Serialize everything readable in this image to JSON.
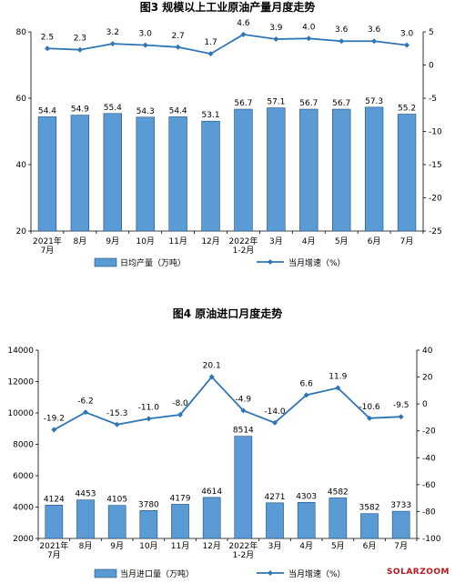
{
  "watermark": "SOLARZOOM",
  "colors": {
    "bar_fill": "#5b9bd5",
    "bar_stroke": "#1f4e79",
    "line": "#2e75b6",
    "axis": "#000000"
  },
  "chart_data": [
    {
      "type": "bar",
      "title": "图3  规模以上工业原油产量月度走势",
      "categories": [
        "2021年\n7月",
        "8月",
        "9月",
        "10月",
        "11月",
        "12月",
        "2022年\n1-2月",
        "3月",
        "4月",
        "5月",
        "6月",
        "7月"
      ],
      "ylim_left": [
        20,
        80
      ],
      "yticks_left": [
        20,
        40,
        60,
        80
      ],
      "ylim_right": [
        -25,
        5
      ],
      "yticks_right": [
        5,
        0,
        -5,
        -10,
        -15,
        -20,
        -25
      ],
      "series": [
        {
          "name": "日均产量（万吨）",
          "type": "bar",
          "axis": "left",
          "values": [
            54.4,
            54.9,
            55.4,
            54.3,
            54.4,
            53.1,
            56.7,
            57.1,
            56.7,
            56.7,
            57.3,
            55.2
          ]
        },
        {
          "name": "当月增速（%）",
          "type": "line",
          "axis": "right",
          "values": [
            2.5,
            2.3,
            3.2,
            3.0,
            2.7,
            1.7,
            4.6,
            3.9,
            4.0,
            3.6,
            3.6,
            3.0
          ]
        }
      ]
    },
    {
      "type": "bar",
      "title": "图4  原油进口月度走势",
      "categories": [
        "2021年\n7月",
        "8月",
        "9月",
        "10月",
        "11月",
        "12月",
        "2022年\n1-2月",
        "3月",
        "4月",
        "5月",
        "6月",
        "7月"
      ],
      "ylim_left": [
        2000,
        14000
      ],
      "yticks_left": [
        2000,
        4000,
        6000,
        8000,
        10000,
        12000,
        14000
      ],
      "ylim_right": [
        -100,
        40
      ],
      "yticks_right": [
        40,
        20,
        0,
        -20,
        -40,
        -60,
        -80,
        -100
      ],
      "series": [
        {
          "name": "当月进口量（万吨）",
          "type": "bar",
          "axis": "left",
          "values": [
            4124,
            4453,
            4105,
            3780,
            4179,
            4614,
            8514,
            4271,
            4303,
            4582,
            3582,
            3733
          ]
        },
        {
          "name": "当月增速（%）",
          "type": "line",
          "axis": "right",
          "values": [
            -19.2,
            -6.2,
            -15.3,
            -11.0,
            -8.0,
            20.1,
            -4.9,
            -14.0,
            6.6,
            11.9,
            -10.6,
            -9.5
          ]
        }
      ]
    }
  ]
}
